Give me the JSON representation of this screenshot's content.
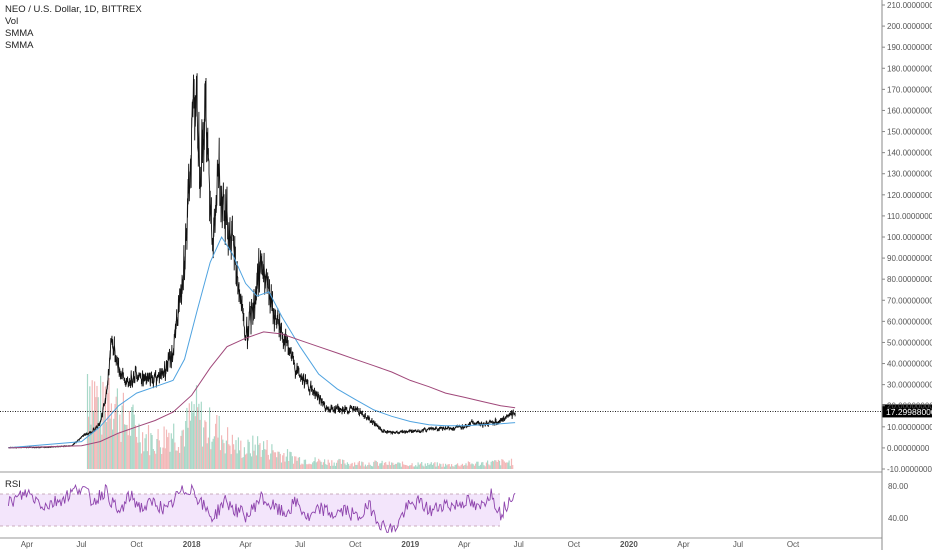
{
  "legend": {
    "symbol": "NEO / U.S. Dollar, 1D, BITTREX",
    "volume": "Vol",
    "smma_fast": "SMMA",
    "smma_slow": "SMMA"
  },
  "rsi_label": "RSI",
  "last_price_label": "17.29988000",
  "colors": {
    "price": "#111111",
    "smma_fast": "#4fa3e0",
    "smma_slow": "#a0487a",
    "volume_up": "#a8d8c8",
    "volume_down": "#f3b8b8",
    "rsi_line": "#8e44ad",
    "rsi_band": "#f3e5fb",
    "axis": "#555555"
  },
  "chart_data": [
    {
      "type": "line",
      "name": "price",
      "title": "NEO / U.S. Dollar, 1D, BITTREX",
      "x_tick_labels": [
        "Apr",
        "Jul",
        "Oct",
        "2018",
        "Apr",
        "Jul",
        "Oct",
        "2019",
        "Apr",
        "Jul",
        "Oct",
        "2020",
        "Apr",
        "Jul",
        "Oct"
      ],
      "y_tick_labels": [
        "210.00000000",
        "200.00000000",
        "190.00000000",
        "180.00000000",
        "170.00000000",
        "160.00000000",
        "150.00000000",
        "140.00000000",
        "130.00000000",
        "120.00000000",
        "110.00000000",
        "100.00000000",
        "90.00000000",
        "80.00000000",
        "70.00000000",
        "60.00000000",
        "50.00000000",
        "40.00000000",
        "30.00000000",
        "20.00000000",
        "10.00000000",
        "0.00000000",
        "-10.00000000"
      ],
      "ylim": [
        -10,
        210
      ],
      "grid": false,
      "last_price": 17.29988,
      "series": [
        {
          "name": "NEO / U.S. Dollar",
          "x": [
            "2017-03-01",
            "2017-05-01",
            "2017-06-15",
            "2017-07-05",
            "2017-07-20",
            "2017-08-01",
            "2017-08-12",
            "2017-08-20",
            "2017-09-01",
            "2017-09-15",
            "2017-10-01",
            "2017-10-15",
            "2017-11-01",
            "2017-11-15",
            "2017-12-01",
            "2017-12-15",
            "2017-12-25",
            "2018-01-05",
            "2018-01-15",
            "2018-01-25",
            "2018-02-06",
            "2018-02-15",
            "2018-03-01",
            "2018-03-15",
            "2018-04-01",
            "2018-04-15",
            "2018-04-25",
            "2018-05-05",
            "2018-05-20",
            "2018-06-05",
            "2018-06-20",
            "2018-07-01",
            "2018-07-15",
            "2018-08-01",
            "2018-08-15",
            "2018-09-01",
            "2018-09-15",
            "2018-10-01",
            "2018-10-15",
            "2018-11-01",
            "2018-11-15",
            "2018-12-01",
            "2018-12-15",
            "2019-01-01",
            "2019-01-15",
            "2019-02-01",
            "2019-03-01",
            "2019-04-01",
            "2019-04-15",
            "2019-05-01",
            "2019-05-15",
            "2019-06-01",
            "2019-06-15",
            "2019-06-25"
          ],
          "values": [
            0.15,
            0.3,
            1,
            6,
            8,
            12,
            25,
            52,
            38,
            30,
            36,
            32,
            33,
            36,
            45,
            78,
            105,
            175,
            135,
            160,
            95,
            130,
            110,
            88,
            52,
            68,
            88,
            78,
            62,
            52,
            40,
            34,
            29,
            24,
            18,
            19,
            18,
            18,
            16,
            12,
            8,
            7,
            7.5,
            8,
            8,
            9,
            9,
            10,
            12,
            11,
            12,
            13,
            15,
            17.3
          ]
        },
        {
          "name": "SMMA",
          "x": [
            "2017-03-01",
            "2017-07-01",
            "2017-08-01",
            "2017-09-01",
            "2017-10-01",
            "2017-11-01",
            "2017-12-01",
            "2017-12-20",
            "2018-01-10",
            "2018-02-01",
            "2018-02-20",
            "2018-03-10",
            "2018-04-01",
            "2018-04-20",
            "2018-05-10",
            "2018-06-01",
            "2018-07-01",
            "2018-08-01",
            "2018-09-01",
            "2018-10-01",
            "2018-11-01",
            "2018-12-01",
            "2019-01-01",
            "2019-02-01",
            "2019-03-01",
            "2019-04-01",
            "2019-05-01",
            "2019-06-01",
            "2019-06-25"
          ],
          "values": [
            0.1,
            3,
            10,
            20,
            26,
            29,
            32,
            42,
            65,
            88,
            100,
            92,
            78,
            72,
            74,
            62,
            48,
            35,
            28,
            23,
            18,
            15,
            12.5,
            11,
            10.5,
            10.5,
            11,
            11.5,
            12
          ]
        },
        {
          "name": "SMMA",
          "x": [
            "2017-03-01",
            "2017-07-01",
            "2017-08-01",
            "2017-09-01",
            "2017-10-01",
            "2017-11-01",
            "2017-12-01",
            "2018-01-01",
            "2018-02-01",
            "2018-03-01",
            "2018-04-01",
            "2018-05-01",
            "2018-06-01",
            "2018-07-01",
            "2018-08-01",
            "2018-09-01",
            "2018-10-01",
            "2018-11-01",
            "2018-12-01",
            "2019-01-01",
            "2019-02-01",
            "2019-03-01",
            "2019-04-01",
            "2019-05-01",
            "2019-06-01",
            "2019-06-25"
          ],
          "values": [
            0,
            1,
            3,
            7,
            10,
            13,
            17,
            25,
            38,
            48,
            52,
            55,
            54,
            51,
            48,
            45,
            42,
            39,
            36,
            32,
            29,
            26,
            24,
            22,
            20,
            19
          ]
        }
      ]
    },
    {
      "type": "bar",
      "name": "Vol",
      "x": [
        "2017-07-10",
        "2017-07-20",
        "2017-08-05",
        "2017-08-15",
        "2017-08-25",
        "2017-09-10",
        "2017-09-25",
        "2017-10-10",
        "2017-10-25",
        "2017-11-10",
        "2017-11-25",
        "2017-12-10",
        "2017-12-25",
        "2018-01-05",
        "2018-01-15",
        "2018-01-25",
        "2018-02-05",
        "2018-02-20",
        "2018-03-10",
        "2018-04-01",
        "2018-04-20",
        "2018-05-10",
        "2018-06-01",
        "2018-07-01",
        "2018-08-01",
        "2018-09-01",
        "2018-10-01",
        "2018-11-01",
        "2018-12-01",
        "2019-01-01",
        "2019-02-01",
        "2019-03-01",
        "2019-04-01",
        "2019-05-01",
        "2019-06-01"
      ],
      "values": [
        1.0,
        0.8,
        0.6,
        0.9,
        0.7,
        0.5,
        0.45,
        0.35,
        0.3,
        0.3,
        0.4,
        0.35,
        0.45,
        0.6,
        0.5,
        0.4,
        0.45,
        0.35,
        0.25,
        0.2,
        0.25,
        0.2,
        0.15,
        0.1,
        0.08,
        0.07,
        0.06,
        0.06,
        0.05,
        0.05,
        0.05,
        0.04,
        0.05,
        0.06,
        0.07
      ]
    },
    {
      "type": "line",
      "name": "RSI",
      "y_tick_labels": [
        "80.00",
        "40.00"
      ],
      "band": [
        30,
        70
      ],
      "x": [
        "2017-03-01",
        "2017-04-01",
        "2017-05-01",
        "2017-06-01",
        "2017-07-01",
        "2017-07-20",
        "2017-08-10",
        "2017-09-01",
        "2017-09-20",
        "2017-10-10",
        "2017-11-01",
        "2017-11-20",
        "2017-12-10",
        "2018-01-01",
        "2018-01-20",
        "2018-02-06",
        "2018-02-25",
        "2018-03-15",
        "2018-04-05",
        "2018-04-25",
        "2018-05-15",
        "2018-06-05",
        "2018-06-25",
        "2018-07-15",
        "2018-08-05",
        "2018-08-25",
        "2018-09-15",
        "2018-10-05",
        "2018-10-25",
        "2018-11-15",
        "2018-12-05",
        "2018-12-25",
        "2019-01-15",
        "2019-02-05",
        "2019-02-25",
        "2019-03-15",
        "2019-04-05",
        "2019-04-25",
        "2019-05-15",
        "2019-06-01",
        "2019-06-15",
        "2019-06-25"
      ],
      "values": [
        58,
        72,
        55,
        65,
        80,
        60,
        75,
        45,
        68,
        52,
        60,
        48,
        70,
        78,
        55,
        40,
        62,
        50,
        42,
        66,
        55,
        45,
        60,
        38,
        52,
        44,
        50,
        40,
        55,
        30,
        25,
        52,
        60,
        48,
        58,
        55,
        62,
        50,
        72,
        45,
        62,
        78
      ]
    }
  ]
}
